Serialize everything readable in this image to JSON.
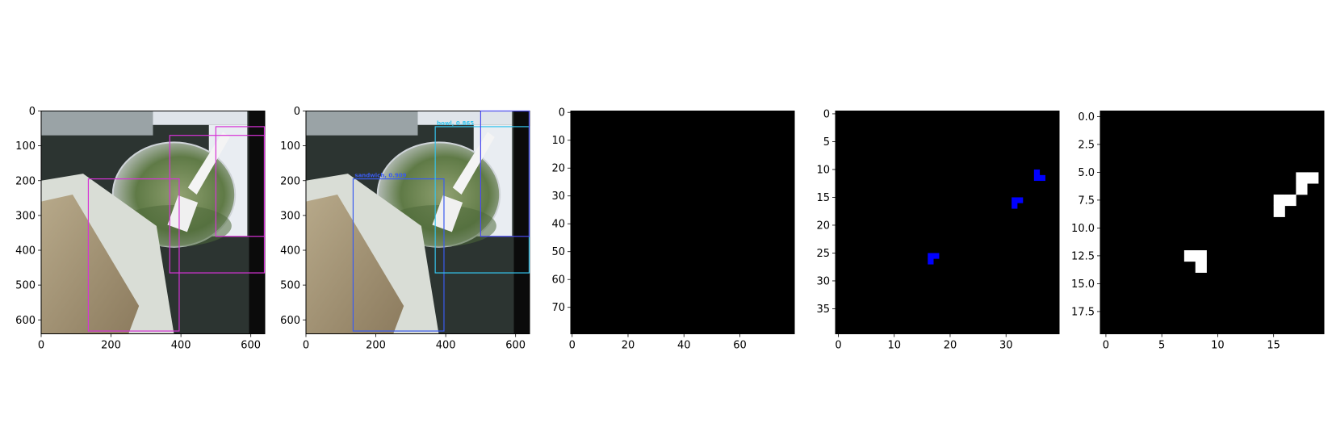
{
  "colors": {
    "background": "#ffffff",
    "panel_black": "#000000",
    "mask_blue": "#0000ff",
    "mask_white": "#ffffff",
    "gt_box": "#d633d6",
    "pred_box_blue": "#3a5cf0",
    "pred_box_cyan": "#35c4ee",
    "pred_box_indigo": "#4b4bf0"
  },
  "chart_data": [
    {
      "type": "image",
      "content": "photo-with-gt-boxes",
      "x_ticks": [
        "0",
        "200",
        "400",
        "600"
      ],
      "y_ticks": [
        "0",
        "100",
        "200",
        "300",
        "400",
        "500",
        "600"
      ],
      "xlim": [
        0,
        640
      ],
      "ylim": [
        640,
        0
      ],
      "boxes": [
        {
          "x0": 135,
          "y0": 195,
          "x1": 395,
          "y1": 632,
          "color": "#d633d6"
        },
        {
          "x0": 368,
          "y0": 70,
          "x1": 640,
          "y1": 465,
          "color": "#d633d6"
        },
        {
          "x0": 500,
          "y0": 45,
          "x1": 640,
          "y1": 360,
          "color": "#d633d6"
        }
      ]
    },
    {
      "type": "image",
      "content": "photo-with-pred-boxes",
      "x_ticks": [
        "0",
        "200",
        "400",
        "600"
      ],
      "y_ticks": [
        "0",
        "100",
        "200",
        "300",
        "400",
        "500",
        "600"
      ],
      "xlim": [
        0,
        640
      ],
      "ylim": [
        640,
        0
      ],
      "boxes": [
        {
          "x0": 135,
          "y0": 195,
          "x1": 395,
          "y1": 632,
          "color": "#3a5cf0",
          "label": "sandwich, 0.909"
        },
        {
          "x0": 370,
          "y0": 45,
          "x1": 640,
          "y1": 465,
          "color": "#35c4ee",
          "label": "bowl, 0.865"
        },
        {
          "x0": 500,
          "y0": 0,
          "x1": 640,
          "y1": 360,
          "color": "#4b4bf0",
          "label": ""
        }
      ]
    },
    {
      "type": "heatmap",
      "content": "all-black",
      "x_ticks": [
        "0",
        "20",
        "40",
        "60"
      ],
      "y_ticks": [
        "0",
        "10",
        "20",
        "30",
        "40",
        "50",
        "60",
        "70"
      ],
      "xlim": [
        -0.5,
        79.5
      ],
      "ylim": [
        79.5,
        -0.5
      ],
      "cells": []
    },
    {
      "type": "heatmap",
      "content": "blue-cells",
      "x_ticks": [
        "0",
        "10",
        "20",
        "30"
      ],
      "y_ticks": [
        "0",
        "5",
        "10",
        "15",
        "20",
        "25",
        "30",
        "35"
      ],
      "xlim": [
        -0.5,
        39.5
      ],
      "ylim": [
        39.5,
        -0.5
      ],
      "cell_color": "#0000ff",
      "cells": [
        [
          35,
          10
        ],
        [
          35,
          11
        ],
        [
          36,
          11
        ],
        [
          31,
          15
        ],
        [
          32,
          15
        ],
        [
          31,
          16
        ],
        [
          16,
          25
        ],
        [
          17,
          25
        ],
        [
          16,
          26
        ]
      ]
    },
    {
      "type": "heatmap",
      "content": "white-cells",
      "x_ticks": [
        "0",
        "5",
        "10",
        "15"
      ],
      "y_ticks": [
        "0.0",
        "2.5",
        "5.0",
        "7.5",
        "10.0",
        "12.5",
        "15.0",
        "17.5"
      ],
      "xlim": [
        -0.5,
        19.5
      ],
      "ylim": [
        19.5,
        -0.5
      ],
      "cell_color": "#ffffff",
      "cells": [
        [
          17,
          5
        ],
        [
          18,
          5
        ],
        [
          17,
          6
        ],
        [
          15,
          7
        ],
        [
          16,
          7
        ],
        [
          15,
          8
        ],
        [
          7,
          12
        ],
        [
          8,
          12
        ],
        [
          8,
          13
        ]
      ]
    }
  ]
}
